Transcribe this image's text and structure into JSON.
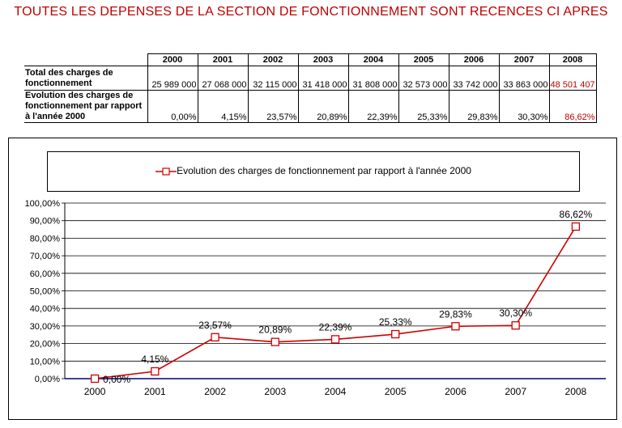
{
  "page": {
    "title": "TOUTES LES DEPENSES DE LA SECTION DE FONCTIONNEMENT SONT RECENCES CI APRES"
  },
  "table": {
    "years": [
      "2000",
      "2001",
      "2002",
      "2003",
      "2004",
      "2005",
      "2006",
      "2007",
      "2008"
    ],
    "rows": [
      {
        "label": "Total des charges de fonctionnement",
        "values": [
          "25 989 000",
          "27 068 000",
          "32 115 000",
          "31 418 000",
          "31 808 000",
          "32 573 000",
          "33 742 000",
          "33 863 000",
          "48 501 407"
        ]
      },
      {
        "label": "Evolution des charges de fonctionnement par rapport à l'année 2000",
        "values": [
          "0,00%",
          "4,15%",
          "23,57%",
          "20,89%",
          "22,39%",
          "25,33%",
          "29,83%",
          "30,30%",
          "86,62%"
        ]
      }
    ],
    "highlight_color": "#c00000"
  },
  "chart_data": {
    "type": "line",
    "categories": [
      "2000",
      "2001",
      "2002",
      "2003",
      "2004",
      "2005",
      "2006",
      "2007",
      "2008"
    ],
    "series": [
      {
        "name": "Evolution des charges de fonctionnement par rapport à l'année 2000",
        "values": [
          0.0,
          4.15,
          23.57,
          20.89,
          22.39,
          25.33,
          29.83,
          30.3,
          86.62
        ],
        "labels": [
          "0,00%",
          "4,15%",
          "23,57%",
          "20,89%",
          "22,39%",
          "25,33%",
          "29,83%",
          "30,30%",
          "86,62%"
        ],
        "color": "#d00000",
        "marker": "square-open"
      }
    ],
    "ylim": [
      0,
      100
    ],
    "yticks": [
      0,
      10,
      20,
      30,
      40,
      50,
      60,
      70,
      80,
      90,
      100
    ],
    "ytick_labels": [
      "0,00%",
      "10,00%",
      "20,00%",
      "30,00%",
      "40,00%",
      "50,00%",
      "60,00%",
      "70,00%",
      "80,00%",
      "90,00%",
      "100,00%"
    ],
    "grid": true,
    "legend": "top",
    "xaxis_color": "#000080"
  }
}
